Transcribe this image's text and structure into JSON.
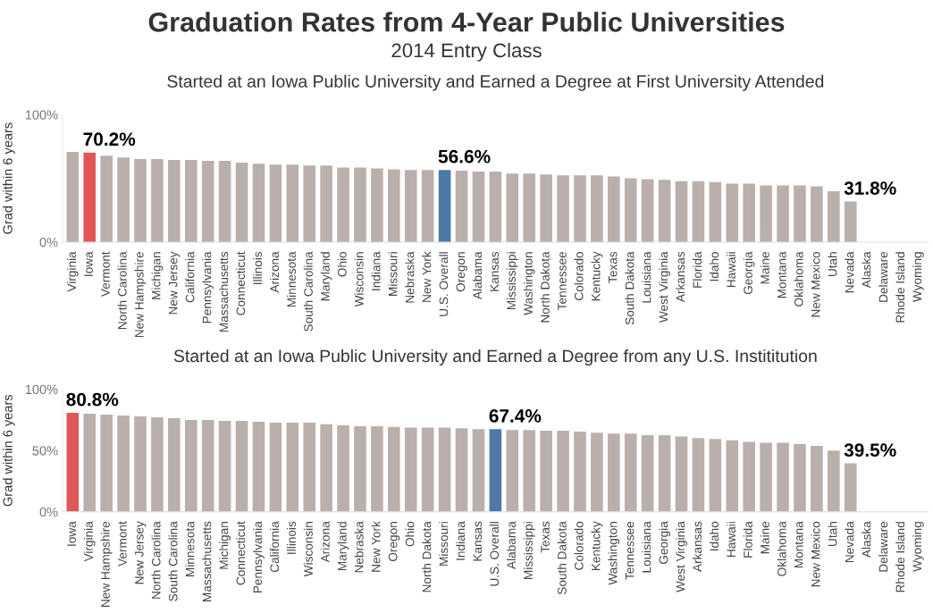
{
  "chart_data": [
    {
      "type": "bar",
      "title": "Started at an Iowa Public University and Earned a Degree at First University Attended",
      "annotations": [
        "Graduation Rates from 4-Year Public Universities",
        "2014 Entry Class"
      ],
      "ylabel": "Grad within 6 years",
      "categories": [
        "Virginia",
        "Iowa",
        "Vermont",
        "North Carolina",
        "New Hampshire",
        "Michigan",
        "New Jersey",
        "California",
        "Pennsylvania",
        "Massachusetts",
        "Connecticut",
        "Illinois",
        "Arizona",
        "Minnesota",
        "South Carolina",
        "Maryland",
        "Ohio",
        "Wisconsin",
        "Indiana",
        "Missouri",
        "Nebraska",
        "New York",
        "U.S. Overall",
        "Oregon",
        "Alabama",
        "Kansas",
        "Mississippi",
        "Washington",
        "North Dakota",
        "Tennessee",
        "Colorado",
        "Kentucky",
        "Texas",
        "South Dakota",
        "Louisiana",
        "West Virginia",
        "Arkansas",
        "Florida",
        "Idaho",
        "Hawaii",
        "Georgia",
        "Maine",
        "Montana",
        "Oklahoma",
        "New Mexico",
        "Utah",
        "Nevada",
        "Alaska",
        "Delaware",
        "Rhode Island",
        "Wyoming"
      ],
      "values": [
        70.7,
        70.2,
        67.8,
        66.4,
        65.1,
        65.1,
        64.4,
        64.4,
        63.7,
        63.7,
        62.4,
        61.4,
        60.8,
        60.8,
        60.1,
        60.1,
        58.5,
        58.5,
        57.8,
        57.1,
        56.5,
        56.6,
        56.6,
        56.0,
        55.3,
        55.3,
        53.7,
        53.7,
        53.1,
        52.4,
        52.4,
        52.4,
        51.5,
        50.1,
        49.4,
        48.8,
        47.8,
        47.8,
        47.1,
        45.8,
        45.8,
        44.4,
        44.4,
        44.4,
        43.7,
        39.9,
        31.8,
        null,
        null,
        null,
        null
      ],
      "colors": [
        "#b9b0ab",
        "#e05759",
        "#b9b0ab",
        "#b9b0ab",
        "#b9b0ab",
        "#b9b0ab",
        "#b9b0ab",
        "#b9b0ab",
        "#b9b0ab",
        "#b9b0ab",
        "#b9b0ab",
        "#b9b0ab",
        "#b9b0ab",
        "#b9b0ab",
        "#b9b0ab",
        "#b9b0ab",
        "#b9b0ab",
        "#b9b0ab",
        "#b9b0ab",
        "#b9b0ab",
        "#b9b0ab",
        "#b9b0ab",
        "#4e79a7",
        "#b9b0ab",
        "#b9b0ab",
        "#b9b0ab",
        "#b9b0ab",
        "#b9b0ab",
        "#b9b0ab",
        "#b9b0ab",
        "#b9b0ab",
        "#b9b0ab",
        "#b9b0ab",
        "#b9b0ab",
        "#b9b0ab",
        "#b9b0ab",
        "#b9b0ab",
        "#b9b0ab",
        "#b9b0ab",
        "#b9b0ab",
        "#b9b0ab",
        "#b9b0ab",
        "#b9b0ab",
        "#b9b0ab",
        "#b9b0ab",
        "#b9b0ab",
        "#b9b0ab",
        "#b9b0ab",
        "#b9b0ab",
        "#b9b0ab",
        "#b9b0ab"
      ],
      "value_labels": [
        null,
        "70.2%",
        null,
        null,
        null,
        null,
        null,
        null,
        null,
        null,
        null,
        null,
        null,
        null,
        null,
        null,
        null,
        null,
        null,
        null,
        null,
        null,
        "56.6%",
        null,
        null,
        null,
        null,
        null,
        null,
        null,
        null,
        null,
        null,
        null,
        null,
        null,
        null,
        null,
        null,
        null,
        null,
        null,
        null,
        null,
        null,
        null,
        "31.8%",
        null,
        null,
        null,
        null
      ],
      "ylim": [
        0,
        100
      ],
      "yticks": [
        {
          "value": 0,
          "label": "0%"
        },
        {
          "value": 100,
          "label": "100%"
        }
      ],
      "grid": false
    },
    {
      "type": "bar",
      "title": "Started at an Iowa Public University and Earned a Degree from any U.S. Instititution",
      "ylabel": "Grad within 6 years",
      "categories": [
        "Iowa",
        "Virginia",
        "New Hampshire",
        "Vermont",
        "New Jersey",
        "North Carolina",
        "South Carolina",
        "Minnesota",
        "Massachusetts",
        "Michigan",
        "Connecticut",
        "Pennsylvania",
        "California",
        "Illinois",
        "Wisconsin",
        "Arizona",
        "Maryland",
        "Nebraska",
        "New York",
        "Oregon",
        "Ohio",
        "North Dakota",
        "Missouri",
        "Indiana",
        "Kansas",
        "U.S. Overall",
        "Alabama",
        "Mississippi",
        "Texas",
        "South Dakota",
        "Colorado",
        "Kentucky",
        "Washington",
        "Tennessee",
        "Louisiana",
        "Georgia",
        "West Virginia",
        "Arkansas",
        "Idaho",
        "Hawaii",
        "Florida",
        "Maine",
        "Oklahoma",
        "Montana",
        "New Mexico",
        "Utah",
        "Nevada",
        "Alaska",
        "Delaware",
        "Rhode Island",
        "Wyoming"
      ],
      "values": [
        80.8,
        80.0,
        79.3,
        78.6,
        77.8,
        77.1,
        76.4,
        75.0,
        75.0,
        74.2,
        74.2,
        73.5,
        72.8,
        72.8,
        72.8,
        71.4,
        70.6,
        69.9,
        69.9,
        69.2,
        68.8,
        68.8,
        68.8,
        68.2,
        67.4,
        67.4,
        66.8,
        66.8,
        66.1,
        66.1,
        65.4,
        64.6,
        63.9,
        63.9,
        62.5,
        62.5,
        61.5,
        60.1,
        59.4,
        58.4,
        57.0,
        56.3,
        56.3,
        55.3,
        53.8,
        50.0,
        39.5,
        null,
        null,
        null,
        null
      ],
      "colors": [
        "#e05759",
        "#b9b0ab",
        "#b9b0ab",
        "#b9b0ab",
        "#b9b0ab",
        "#b9b0ab",
        "#b9b0ab",
        "#b9b0ab",
        "#b9b0ab",
        "#b9b0ab",
        "#b9b0ab",
        "#b9b0ab",
        "#b9b0ab",
        "#b9b0ab",
        "#b9b0ab",
        "#b9b0ab",
        "#b9b0ab",
        "#b9b0ab",
        "#b9b0ab",
        "#b9b0ab",
        "#b9b0ab",
        "#b9b0ab",
        "#b9b0ab",
        "#b9b0ab",
        "#b9b0ab",
        "#4e79a7",
        "#b9b0ab",
        "#b9b0ab",
        "#b9b0ab",
        "#b9b0ab",
        "#b9b0ab",
        "#b9b0ab",
        "#b9b0ab",
        "#b9b0ab",
        "#b9b0ab",
        "#b9b0ab",
        "#b9b0ab",
        "#b9b0ab",
        "#b9b0ab",
        "#b9b0ab",
        "#b9b0ab",
        "#b9b0ab",
        "#b9b0ab",
        "#b9b0ab",
        "#b9b0ab",
        "#b9b0ab",
        "#b9b0ab",
        "#b9b0ab",
        "#b9b0ab",
        "#b9b0ab",
        "#b9b0ab"
      ],
      "value_labels": [
        "80.8%",
        null,
        null,
        null,
        null,
        null,
        null,
        null,
        null,
        null,
        null,
        null,
        null,
        null,
        null,
        null,
        null,
        null,
        null,
        null,
        null,
        null,
        null,
        null,
        null,
        "67.4%",
        null,
        null,
        null,
        null,
        null,
        null,
        null,
        null,
        null,
        null,
        null,
        null,
        null,
        null,
        null,
        null,
        null,
        null,
        null,
        null,
        "39.5%",
        null,
        null,
        null,
        null
      ],
      "ylim": [
        0,
        100
      ],
      "yticks": [
        {
          "value": 0,
          "label": "0%"
        },
        {
          "value": 50,
          "label": "50%"
        },
        {
          "value": 100,
          "label": "100%"
        }
      ],
      "grid": false
    }
  ]
}
